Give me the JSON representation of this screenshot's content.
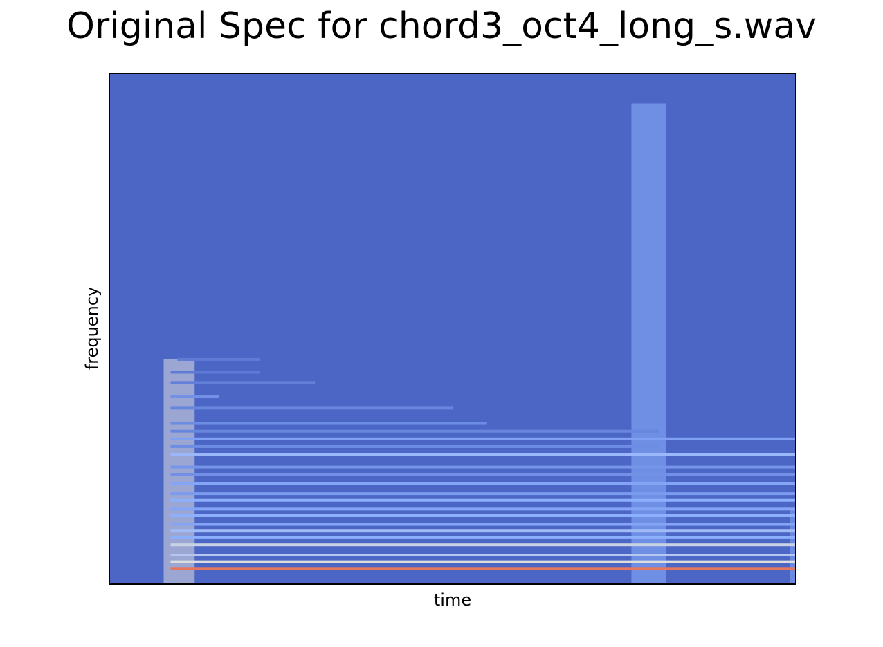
{
  "chart_data": {
    "type": "heatmap",
    "title": "Original Spec for chord3_oct4_long_s.wav",
    "xlabel": "time",
    "ylabel": "frequency",
    "x_ticks": "none",
    "y_ticks": "none",
    "colormap": "coolwarm",
    "background_color": "#4c66c6",
    "frame_color": "#000000",
    "value_range": [
      0,
      1
    ],
    "time_range": [
      0,
      1
    ],
    "frequency_range": [
      0,
      1
    ],
    "onset_events": [
      {
        "time": [
          0.08,
          0.125
        ],
        "freq_max": 0.44,
        "intensity": 0.55
      },
      {
        "time": [
          0.76,
          0.81
        ],
        "freq_max": 0.94,
        "intensity": 0.35
      },
      {
        "time": [
          0.99,
          1.0
        ],
        "freq_max": 0.15,
        "intensity": 0.3
      }
    ],
    "harmonics": [
      {
        "freq": 0.032,
        "start": 0.09,
        "end": 1.0,
        "intensity": 0.85
      },
      {
        "freq": 0.045,
        "start": 0.09,
        "end": 1.0,
        "intensity": 0.55
      },
      {
        "freq": 0.058,
        "start": 0.09,
        "end": 1.0,
        "intensity": 0.45
      },
      {
        "freq": 0.078,
        "start": 0.09,
        "end": 1.0,
        "intensity": 0.5
      },
      {
        "freq": 0.092,
        "start": 0.09,
        "end": 1.0,
        "intensity": 0.35
      },
      {
        "freq": 0.105,
        "start": 0.09,
        "end": 1.0,
        "intensity": 0.4
      },
      {
        "freq": 0.118,
        "start": 0.09,
        "end": 1.0,
        "intensity": 0.3
      },
      {
        "freq": 0.135,
        "start": 0.09,
        "end": 1.0,
        "intensity": 0.35
      },
      {
        "freq": 0.148,
        "start": 0.09,
        "end": 1.0,
        "intensity": 0.3
      },
      {
        "freq": 0.165,
        "start": 0.09,
        "end": 1.0,
        "intensity": 0.35
      },
      {
        "freq": 0.178,
        "start": 0.09,
        "end": 1.0,
        "intensity": 0.25
      },
      {
        "freq": 0.198,
        "start": 0.09,
        "end": 1.0,
        "intensity": 0.3
      },
      {
        "freq": 0.215,
        "start": 0.09,
        "end": 1.0,
        "intensity": 0.2
      },
      {
        "freq": 0.23,
        "start": 0.09,
        "end": 1.0,
        "intensity": 0.22
      },
      {
        "freq": 0.255,
        "start": 0.09,
        "end": 1.0,
        "intensity": 0.38
      },
      {
        "freq": 0.27,
        "start": 0.09,
        "end": 0.8,
        "intensity": 0.18
      },
      {
        "freq": 0.285,
        "start": 0.09,
        "end": 1.0,
        "intensity": 0.28
      },
      {
        "freq": 0.3,
        "start": 0.09,
        "end": 0.8,
        "intensity": 0.15
      },
      {
        "freq": 0.315,
        "start": 0.09,
        "end": 0.55,
        "intensity": 0.18
      },
      {
        "freq": 0.345,
        "start": 0.09,
        "end": 0.5,
        "intensity": 0.15
      },
      {
        "freq": 0.367,
        "start": 0.09,
        "end": 0.16,
        "intensity": 0.2
      },
      {
        "freq": 0.395,
        "start": 0.09,
        "end": 0.3,
        "intensity": 0.12
      },
      {
        "freq": 0.415,
        "start": 0.09,
        "end": 0.22,
        "intensity": 0.1
      },
      {
        "freq": 0.44,
        "start": 0.1,
        "end": 0.22,
        "intensity": 0.1
      }
    ]
  }
}
